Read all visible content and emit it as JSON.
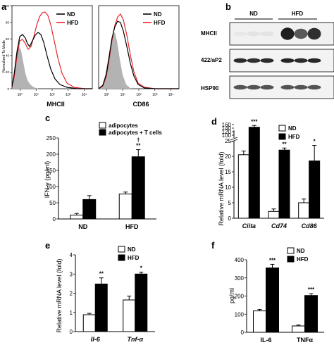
{
  "panel_letters": [
    "a",
    "b",
    "c",
    "d",
    "e",
    "f"
  ],
  "legend": {
    "nd": "ND",
    "hfd": "HFD"
  },
  "colors": {
    "nd": "#000000",
    "hfd": "#e8242b",
    "isotype": "#b3b3b3",
    "bar_open": "#ffffff",
    "bar_filled": "#000000"
  },
  "panel_a": {
    "ylabel": "Normalized To Mode",
    "x_ticks": [
      "10⁰",
      "10¹",
      "10²",
      "10³",
      "10⁴"
    ],
    "y_ticks": [
      "0",
      "20",
      "40",
      "60",
      "80",
      "100"
    ],
    "plots": [
      {
        "xlabel": "MHCII"
      },
      {
        "xlabel": "CD86"
      }
    ]
  },
  "panel_b": {
    "groups": [
      "ND",
      "HFD"
    ],
    "rows": [
      "MHCII",
      "422/aP2",
      "HSP90"
    ],
    "band_intensity": [
      [
        0.06,
        0.08,
        0.08,
        0.95,
        0.7,
        0.88
      ],
      [
        0.9,
        0.88,
        0.9,
        0.92,
        0.9,
        0.92
      ],
      [
        0.72,
        0.72,
        0.72,
        0.72,
        0.72,
        0.72
      ]
    ]
  },
  "chart_data": [
    {
      "panel": "c",
      "type": "bar",
      "ylabel": "IFN-γ (pg/ml)",
      "categories": [
        "ND",
        "HFD"
      ],
      "series": [
        {
          "name": "adipocytes",
          "values": [
            12,
            77
          ],
          "errors": [
            5,
            6
          ]
        },
        {
          "name": "adipocytes + T cells",
          "values": [
            60,
            192
          ],
          "errors": [
            12,
            22
          ]
        }
      ],
      "annotations": [
        {
          "category": "HFD",
          "series": 1,
          "text": "**"
        },
        {
          "category": "HFD",
          "series": 1,
          "text": "†"
        }
      ],
      "ylim": [
        0,
        250
      ],
      "yticks": [
        "0",
        "50",
        "100",
        "150",
        "200",
        "250"
      ]
    },
    {
      "panel": "d",
      "type": "bar",
      "ylabel": "Relative mRNA level (fold)",
      "categories": [
        "Ciita",
        "Cd74",
        "Cd86"
      ],
      "series": [
        {
          "name": "ND",
          "values": [
            20.5,
            2.2,
            5
          ],
          "errors": [
            1.2,
            0.8,
            1.2
          ]
        },
        {
          "name": "HFD",
          "values": [
            145,
            22,
            18.5
          ],
          "errors": [
            10,
            5,
            5
          ]
        }
      ],
      "annotations": [
        {
          "category": "Ciita",
          "text": "***"
        },
        {
          "category": "Cd74",
          "text": "**"
        },
        {
          "category": "Cd86",
          "text": "*"
        }
      ],
      "axis_break": true,
      "yticks": [
        "0",
        "5",
        "10",
        "15",
        "20",
        "25",
        "100",
        "120",
        "140",
        "160"
      ]
    },
    {
      "panel": "e",
      "type": "bar",
      "ylabel": "Relative mRNA level (fold)",
      "categories": [
        "Il-6",
        "Tnf-α"
      ],
      "series": [
        {
          "name": "ND",
          "values": [
            0.88,
            1.65
          ],
          "errors": [
            0.07,
            0.2
          ]
        },
        {
          "name": "HFD",
          "values": [
            2.48,
            3.0
          ],
          "errors": [
            0.32,
            0.1
          ]
        }
      ],
      "annotations": [
        {
          "category": "Il-6",
          "text": "**"
        },
        {
          "category": "Tnf-α",
          "text": "*"
        }
      ],
      "ylim": [
        0,
        4
      ],
      "yticks": [
        "0",
        "1",
        "2",
        "3",
        "4"
      ]
    },
    {
      "panel": "f",
      "type": "bar",
      "ylabel": "pg/ml",
      "categories": [
        "IL-6",
        "TNFα"
      ],
      "series": [
        {
          "name": "ND",
          "values": [
            118,
            35
          ],
          "errors": [
            8,
            5
          ]
        },
        {
          "name": "HFD",
          "values": [
            355,
            203
          ],
          "errors": [
            20,
            10
          ]
        }
      ],
      "annotations": [
        {
          "category": "IL-6",
          "text": "***"
        },
        {
          "category": "TNFα",
          "text": "***"
        }
      ],
      "ylim": [
        0,
        400
      ],
      "yticks": [
        "0",
        "100",
        "200",
        "300",
        "400"
      ]
    }
  ]
}
